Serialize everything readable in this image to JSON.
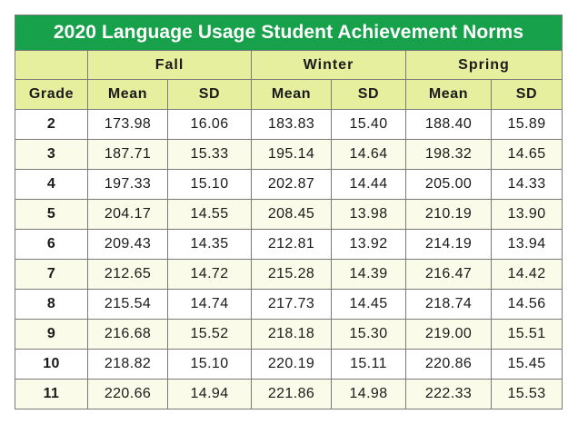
{
  "title": "2020 Language Usage Student Achievement Norms",
  "seasons": [
    "Fall",
    "Winter",
    "Spring"
  ],
  "columns": {
    "grade": "Grade",
    "mean": "Mean",
    "sd": "SD"
  },
  "rows": [
    {
      "grade": "2",
      "fall_mean": "173.98",
      "fall_sd": "16.06",
      "winter_mean": "183.83",
      "winter_sd": "15.40",
      "spring_mean": "188.40",
      "spring_sd": "15.89"
    },
    {
      "grade": "3",
      "fall_mean": "187.71",
      "fall_sd": "15.33",
      "winter_mean": "195.14",
      "winter_sd": "14.64",
      "spring_mean": "198.32",
      "spring_sd": "14.65"
    },
    {
      "grade": "4",
      "fall_mean": "197.33",
      "fall_sd": "15.10",
      "winter_mean": "202.87",
      "winter_sd": "14.44",
      "spring_mean": "205.00",
      "spring_sd": "14.33"
    },
    {
      "grade": "5",
      "fall_mean": "204.17",
      "fall_sd": "14.55",
      "winter_mean": "208.45",
      "winter_sd": "13.98",
      "spring_mean": "210.19",
      "spring_sd": "13.90"
    },
    {
      "grade": "6",
      "fall_mean": "209.43",
      "fall_sd": "14.35",
      "winter_mean": "212.81",
      "winter_sd": "13.92",
      "spring_mean": "214.19",
      "spring_sd": "13.94"
    },
    {
      "grade": "7",
      "fall_mean": "212.65",
      "fall_sd": "14.72",
      "winter_mean": "215.28",
      "winter_sd": "14.39",
      "spring_mean": "216.47",
      "spring_sd": "14.42"
    },
    {
      "grade": "8",
      "fall_mean": "215.54",
      "fall_sd": "14.74",
      "winter_mean": "217.73",
      "winter_sd": "14.45",
      "spring_mean": "218.74",
      "spring_sd": "14.56"
    },
    {
      "grade": "9",
      "fall_mean": "216.68",
      "fall_sd": "15.52",
      "winter_mean": "218.18",
      "winter_sd": "15.30",
      "spring_mean": "219.00",
      "spring_sd": "15.51"
    },
    {
      "grade": "10",
      "fall_mean": "218.82",
      "fall_sd": "15.10",
      "winter_mean": "220.19",
      "winter_sd": "15.11",
      "spring_mean": "220.86",
      "spring_sd": "15.45"
    },
    {
      "grade": "11",
      "fall_mean": "220.66",
      "fall_sd": "14.94",
      "winter_mean": "221.86",
      "winter_sd": "14.98",
      "spring_mean": "222.33",
      "spring_sd": "15.53"
    }
  ],
  "colors": {
    "title_bg": "#17a14a",
    "header_bg": "#e5ef9d",
    "stripe_bg": "#fbfbe9"
  }
}
